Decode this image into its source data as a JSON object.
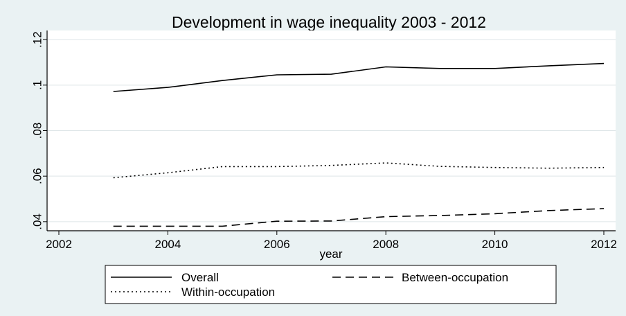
{
  "chart_data": {
    "type": "line",
    "title": "Development in wage inequality 2003 - 2012",
    "xlabel": "year",
    "ylabel": "",
    "x": [
      2003,
      2004,
      2005,
      2006,
      2007,
      2008,
      2009,
      2010,
      2011,
      2012
    ],
    "xlim": [
      2002,
      2012
    ],
    "ylim": [
      0.036,
      0.124
    ],
    "xticks": [
      2002,
      2004,
      2006,
      2008,
      2010,
      2012
    ],
    "xtick_labels": [
      "2002",
      "2004",
      "2006",
      "2008",
      "2010",
      "2012"
    ],
    "yticks": [
      0.04,
      0.06,
      0.08,
      0.1,
      0.12
    ],
    "ytick_labels": [
      ".04",
      ".06",
      ".08",
      ".1",
      ".12"
    ],
    "grid": true,
    "legend_position": "bottom",
    "series": [
      {
        "name": "Overall",
        "style": "solid",
        "values": [
          0.0972,
          0.099,
          0.102,
          0.1045,
          0.1048,
          0.108,
          0.1073,
          0.1073,
          0.1085,
          0.1095
        ]
      },
      {
        "name": "Between-occupation",
        "style": "dashed",
        "values": [
          0.038,
          0.038,
          0.038,
          0.0402,
          0.0403,
          0.0422,
          0.0427,
          0.0435,
          0.0449,
          0.0457
        ]
      },
      {
        "name": "Within-occupation",
        "style": "dotted",
        "values": [
          0.0593,
          0.0615,
          0.0642,
          0.0642,
          0.0647,
          0.0658,
          0.0643,
          0.0638,
          0.0635,
          0.0638
        ]
      }
    ],
    "colors": {
      "line": "#000000",
      "grid": "#dde5e7",
      "plot_bg": "#ffffff",
      "page_bg": "#eaf2f3"
    }
  }
}
